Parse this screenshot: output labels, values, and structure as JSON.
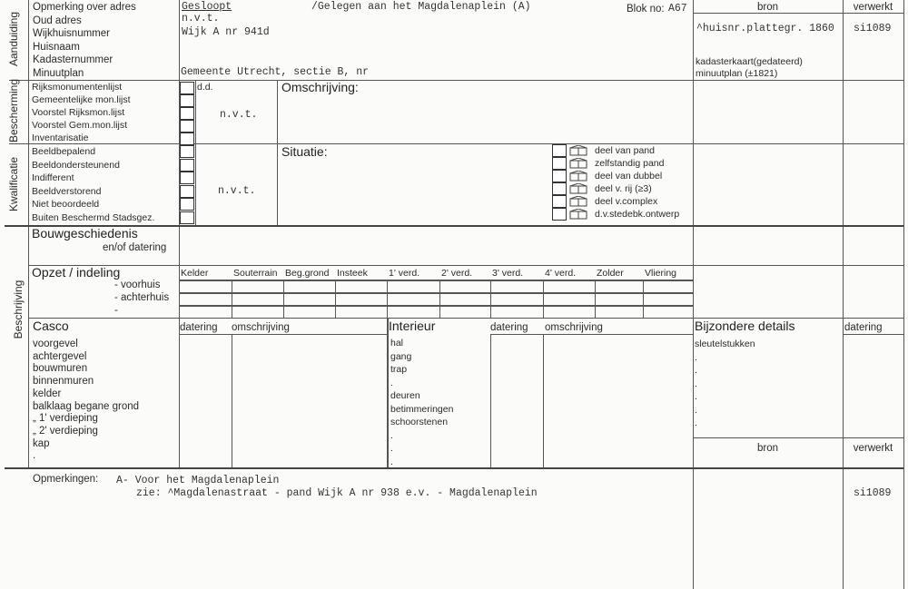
{
  "sections": {
    "aanduiding": "Aanduiding",
    "bescherming": "Bescherming",
    "kwalificatie": "Kwalificatie",
    "beschrijving": "Beschrijving"
  },
  "aanduiding": {
    "labels": [
      "Opmerking over adres",
      "Oud adres",
      "Wijkhuisnummer",
      "Huisnaam",
      "Kadasternummer",
      "Minuutplan"
    ],
    "status": "Gesloopt",
    "location": "/Gelegen aan het Magdalenaplein (A)",
    "oud_adres": "n.v.t.",
    "wijkhuisnummer": "Wijk A nr 941d",
    "minuutplan": "Gemeente Utrecht, sectie B, nr",
    "blok_label": "Blok no:",
    "blok_value": "A67"
  },
  "bron_header": {
    "bron": "bron",
    "verwerkt": "verwerkt"
  },
  "bronnen": [
    {
      "bron": "^huisnr.plattegr. 1860",
      "verwerkt": "si1089"
    },
    {
      "bron": "kadasterkaart(gedateerd)"
    },
    {
      "bron": "minuutplan (±1821)"
    }
  ],
  "bescherming": {
    "labels": [
      "Rijksmonumentenlijst",
      "Gemeentelijke mon.lijst",
      "Voorstel Rijksmon.lijst",
      "Voorstel Gem.mon.lijst",
      "Inventarisatie"
    ],
    "dd": "d.d.",
    "value": "n.v.t.",
    "omschrijving": "Omschrijving:"
  },
  "kwalificatie": {
    "labels": [
      "Beeldbepalend",
      "Beeldondersteunend",
      "Indifferent",
      "Beeldverstorend",
      "Niet beoordeeld",
      "Buiten Beschermd Stadsgez."
    ],
    "value": "n.v.t.",
    "situatie": "Situatie:",
    "situatie_options": [
      {
        "label": "deel van pand",
        "icon": "part-building-icon"
      },
      {
        "label": "zelfstandig pand",
        "icon": "detached-building-icon"
      },
      {
        "label": "deel van dubbel",
        "icon": "semi-detached-icon"
      },
      {
        "label": "deel v. rij (≥3)",
        "icon": "row-house-icon"
      },
      {
        "label": "deel v.complex",
        "icon": "complex-icon"
      },
      {
        "label": "d.v.stedebk.ontwerp",
        "icon": "urban-design-icon"
      }
    ]
  },
  "bouwgeschiedenis": {
    "title": "Bouwgeschiedenis",
    "sub": "en/of datering"
  },
  "opzet": {
    "title": "Opzet / indeling",
    "rows": [
      "- voorhuis",
      "- achterhuis",
      "-"
    ],
    "columns": [
      "Kelder",
      "Souterrain",
      "Beg.grond",
      "Insteek",
      "1' verd.",
      "2' verd.",
      "3' verd.",
      "4' verd.",
      "Zolder",
      "Vliering"
    ]
  },
  "casco": {
    "title": "Casco",
    "datering": "datering",
    "omschrijving": "omschrijving",
    "items": [
      "voorgevel",
      "achtergevel",
      "bouwmuren",
      "binnenmuren",
      "kelder",
      "balklaag begane grond",
      "„      1' verdieping",
      "„      2' verdieping",
      "kap",
      "."
    ]
  },
  "interieur": {
    "title": "Interieur",
    "datering": "datering",
    "omschrijving": "omschrijving",
    "items": [
      "hal",
      "gang",
      "trap",
      ".",
      "deuren",
      "betimmeringen",
      "schoorstenen",
      ".",
      ".",
      "."
    ]
  },
  "bijzondere": {
    "title": "Bijzondere details",
    "datering": "datering",
    "items": [
      "sleutelstukken",
      ".",
      ".",
      ".",
      ".",
      ".",
      "."
    ],
    "bron": "bron",
    "verwerkt": "verwerkt"
  },
  "opmerkingen": {
    "label": "Opmerkingen:",
    "line1": "A- Voor het Magdalenaplein",
    "line2": "zie: ^Magdalenastraat - pand Wijk A nr 938 e.v. - Magdalenaplein",
    "verwerkt": "si1089"
  }
}
